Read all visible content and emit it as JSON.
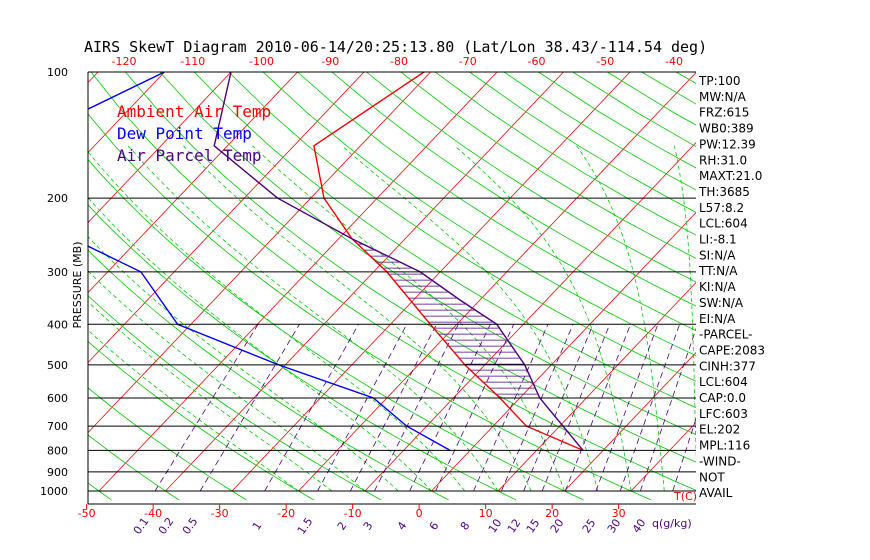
{
  "chart_data": {
    "type": "line",
    "subtype": "skew-t log-p diagram",
    "title": "AIRS SkewT Diagram 2010-06-14/20:25:13.80 (Lat/Lon 38.43/-114.54 deg)",
    "ylabel": "PRESSURE (MB)",
    "y_scale": "log",
    "ylim": [
      1000,
      100
    ],
    "pressure_ticks": [
      "100",
      "200",
      "300",
      "400",
      "500",
      "600",
      "700",
      "800",
      "900",
      "1000"
    ],
    "bottom_temp_ticks": [
      "-50",
      "-40",
      "-30",
      "-20",
      "-10",
      "0",
      "10",
      "20",
      "30"
    ],
    "bottom_temp_unit": "T(C)",
    "top_temp_ticks": [
      "-120",
      "-110",
      "-100",
      "-90",
      "-80",
      "-70",
      "-60",
      "-50",
      "-40"
    ],
    "mixing_ratio_ticks": [
      "0.1",
      "0.2",
      "0.5",
      "1",
      "1.5",
      "2",
      "3",
      "4",
      "6",
      "8",
      "10",
      "12",
      "15",
      "20",
      "25",
      "30",
      "40"
    ],
    "mixing_ratio_unit": "q(g/kg)",
    "legend": [
      {
        "label": "Ambient Air Temp",
        "color": "#ff0000"
      },
      {
        "label": "Dew Point Temp",
        "color": "#0000ff"
      },
      {
        "label": "Air Parcel Temp",
        "color": "#4b0082"
      }
    ],
    "grid": true,
    "series": [
      {
        "name": "Ambient Air Temp",
        "color": "#ff0000",
        "points": [
          [
            100,
            -61
          ],
          [
            150,
            -67
          ],
          [
            200,
            -58
          ],
          [
            250,
            -48
          ],
          [
            300,
            -38
          ],
          [
            400,
            -24
          ],
          [
            500,
            -13
          ],
          [
            600,
            -3
          ],
          [
            700,
            5
          ],
          [
            800,
            17
          ]
        ]
      },
      {
        "name": "Dew Point Temp",
        "color": "#0000ff",
        "points": [
          [
            100,
            -100
          ],
          [
            130,
            -108
          ],
          [
            170,
            -108
          ],
          [
            200,
            -106
          ],
          [
            250,
            -90
          ],
          [
            300,
            -75
          ],
          [
            400,
            -62
          ],
          [
            500,
            -41
          ],
          [
            600,
            -22
          ],
          [
            700,
            -13
          ],
          [
            800,
            -3
          ]
        ]
      },
      {
        "name": "Air Parcel Temp",
        "color": "#4b0082",
        "points": [
          [
            100,
            -90
          ],
          [
            150,
            -82
          ],
          [
            200,
            -65
          ],
          [
            250,
            -48
          ],
          [
            300,
            -33
          ],
          [
            350,
            -23
          ],
          [
            400,
            -14
          ],
          [
            500,
            -4
          ],
          [
            600,
            3
          ],
          [
            800,
            17
          ]
        ]
      }
    ],
    "indices": [
      "TP:100",
      "MW:N/A",
      "FRZ:615",
      "WB0:389",
      "PW:12.39",
      "RH:31.0",
      "MAXT:21.0",
      "TH:3685",
      "L57:8.2",
      "LCL:604",
      "LI:-8.1",
      "SI:N/A",
      "TT:N/A",
      "KI:N/A",
      "SW:N/A",
      "EI:N/A",
      "-PARCEL-",
      "CAPE:2083",
      "CINH:377",
      "LCL:604",
      "CAP:0.0",
      "LFC:603",
      "EL:202",
      "MPL:116",
      "-WIND-",
      "NOT",
      "AVAIL"
    ]
  },
  "colors": {
    "isotherm": "#ff0000",
    "dry_adiabat": "#00cc00",
    "moist_adiabat": "#00cc00",
    "mixing_ratio": "#4b0082",
    "isobar": "#000000",
    "tick_red": "#ff0000",
    "tick_purple": "#4b0082"
  }
}
